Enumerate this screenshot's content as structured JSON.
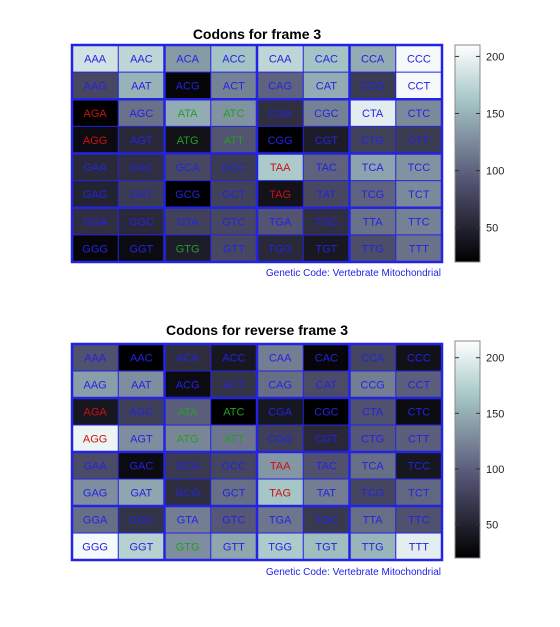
{
  "chart_data": [
    {
      "type": "heatmap",
      "title": "Codons for frame 3",
      "footnote": "Genetic Code: Vertebrate Mitochondrial",
      "colorbar": {
        "ticks": [
          50,
          100,
          150,
          200
        ],
        "min": 20,
        "max": 210,
        "colormap": "bone"
      },
      "rows": [
        [
          "AAA",
          "AAC",
          "ACA",
          "ACC",
          "CAA",
          "CAC",
          "CCA",
          "CCC"
        ],
        [
          "AAG",
          "AAT",
          "ACG",
          "ACT",
          "CAG",
          "CAT",
          "CCG",
          "CCT"
        ],
        [
          "AGA",
          "AGC",
          "ATA",
          "ATC",
          "CGA",
          "CGC",
          "CTA",
          "CTC"
        ],
        [
          "AGG",
          "AGT",
          "ATG",
          "ATT",
          "CGG",
          "CGT",
          "CTG",
          "CTT"
        ],
        [
          "GAA",
          "GAC",
          "GCA",
          "GCC",
          "TAA",
          "TAC",
          "TCA",
          "TCC"
        ],
        [
          "GAG",
          "GAT",
          "GCG",
          "GCT",
          "TAG",
          "TAT",
          "TCG",
          "TCT"
        ],
        [
          "GGA",
          "GGC",
          "GTA",
          "GTC",
          "TGA",
          "TGC",
          "TTA",
          "TTC"
        ],
        [
          "GGG",
          "GGT",
          "GTG",
          "GTT",
          "TGG",
          "TGT",
          "TTG",
          "TTT"
        ]
      ],
      "values": [
        [
          185,
          175,
          135,
          160,
          175,
          160,
          145,
          205
        ],
        [
          80,
          150,
          25,
          120,
          100,
          145,
          70,
          205
        ],
        [
          20,
          110,
          145,
          130,
          60,
          120,
          195,
          125
        ],
        [
          30,
          55,
          35,
          90,
          20,
          45,
          75,
          70
        ],
        [
          55,
          60,
          80,
          70,
          165,
          100,
          140,
          130
        ],
        [
          50,
          70,
          15,
          75,
          35,
          80,
          100,
          125
        ],
        [
          60,
          55,
          75,
          80,
          90,
          60,
          110,
          120
        ],
        [
          25,
          30,
          45,
          80,
          55,
          40,
          85,
          110
        ]
      ]
    },
    {
      "type": "heatmap",
      "title": "Codons for reverse frame 3",
      "footnote": "Genetic Code: Vertebrate Mitochondrial",
      "colorbar": {
        "ticks": [
          50,
          100,
          150,
          200
        ],
        "min": 20,
        "max": 215,
        "colormap": "bone"
      },
      "rows": [
        [
          "AAA",
          "AAC",
          "ACA",
          "ACC",
          "CAA",
          "CAC",
          "CCA",
          "CCC"
        ],
        [
          "AAG",
          "AAT",
          "ACG",
          "ACT",
          "CAG",
          "CAT",
          "CCG",
          "CCT"
        ],
        [
          "AGA",
          "AGC",
          "ATA",
          "ATC",
          "CGA",
          "CGC",
          "CTA",
          "CTC"
        ],
        [
          "AGG",
          "AGT",
          "ATG",
          "ATT",
          "CGG",
          "CGT",
          "CTG",
          "CTT"
        ],
        [
          "GAA",
          "GAC",
          "GCA",
          "GCC",
          "TAA",
          "TAC",
          "TCA",
          "TCC"
        ],
        [
          "GAG",
          "GAT",
          "GCG",
          "GCT",
          "TAG",
          "TAT",
          "TCG",
          "TCT"
        ],
        [
          "GGA",
          "GGC",
          "GTA",
          "GTC",
          "TGA",
          "TGC",
          "TTA",
          "TTC"
        ],
        [
          "GGG",
          "GGT",
          "GTG",
          "GTT",
          "TGG",
          "TGT",
          "TTG",
          "TTT"
        ]
      ],
      "values": [
        [
          90,
          15,
          60,
          40,
          120,
          25,
          80,
          35
        ],
        [
          140,
          130,
          30,
          65,
          110,
          85,
          120,
          100
        ],
        [
          40,
          75,
          100,
          15,
          40,
          20,
          90,
          30
        ],
        [
          205,
          130,
          125,
          115,
          75,
          55,
          95,
          100
        ],
        [
          85,
          30,
          70,
          80,
          135,
          90,
          110,
          40
        ],
        [
          130,
          145,
          60,
          110,
          165,
          120,
          80,
          105
        ],
        [
          110,
          65,
          120,
          95,
          115,
          70,
          110,
          90
        ],
        [
          210,
          175,
          130,
          145,
          170,
          160,
          155,
          200
        ]
      ]
    }
  ],
  "colors": {
    "grid_border": "#2323e6",
    "codon_default": "#2323e6",
    "codon_start": "#22a022",
    "codon_stop": "#cc1111"
  },
  "codon_roles": {
    "start": [
      "ATA",
      "ATT",
      "ATG",
      "GTG",
      "ATC"
    ],
    "stop": [
      "AGA",
      "AGG",
      "TAA",
      "TAG"
    ]
  }
}
